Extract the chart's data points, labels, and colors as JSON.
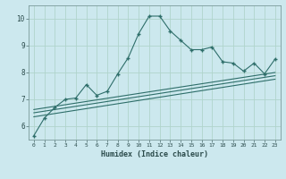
{
  "xlabel": "Humidex (Indice chaleur)",
  "bg_color": "#cce8ee",
  "line_color": "#2e6e6a",
  "grid_color": "#b0d4cc",
  "xlim": [
    -0.5,
    23.5
  ],
  "ylim": [
    5.5,
    10.5
  ],
  "xtick_labels": [
    "0",
    "1",
    "2",
    "3",
    "4",
    "5",
    "6",
    "7",
    "8",
    "9",
    "10",
    "11",
    "12",
    "13",
    "14",
    "15",
    "16",
    "17",
    "18",
    "19",
    "20",
    "21",
    "22",
    "23"
  ],
  "ytick_vals": [
    6,
    7,
    8,
    9,
    10
  ],
  "ytick_labels": [
    "6",
    "7",
    "8",
    "9",
    "10"
  ],
  "main_x": [
    0,
    1,
    2,
    3,
    4,
    5,
    6,
    7,
    8,
    9,
    10,
    11,
    12,
    13,
    14,
    15,
    16,
    17,
    18,
    19,
    20,
    21,
    22,
    23
  ],
  "main_y": [
    5.65,
    6.3,
    6.7,
    7.0,
    7.05,
    7.55,
    7.15,
    7.3,
    7.95,
    8.55,
    9.45,
    10.1,
    10.1,
    9.55,
    9.2,
    8.85,
    8.85,
    8.95,
    8.4,
    8.35,
    8.05,
    8.35,
    7.95,
    8.5
  ],
  "line2_x": [
    0,
    23
  ],
  "line2_y": [
    6.35,
    7.75
  ],
  "line3_x": [
    0,
    23
  ],
  "line3_y": [
    6.5,
    7.88
  ],
  "line4_x": [
    0,
    23
  ],
  "line4_y": [
    6.62,
    8.0
  ]
}
